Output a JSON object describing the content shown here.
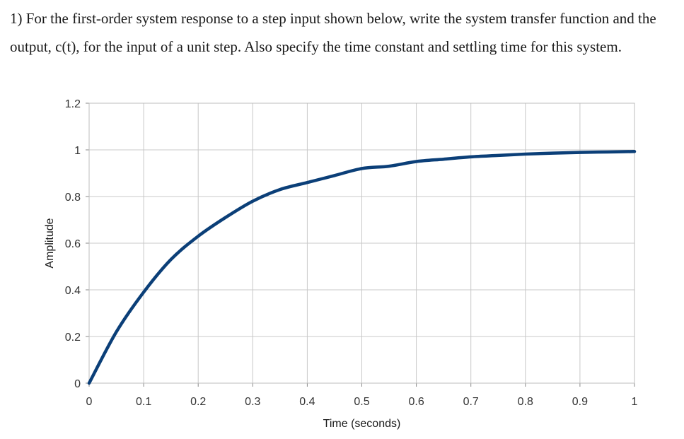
{
  "question": {
    "text": "1) For the first-order system response to a step input shown below, write the system transfer function and the output, c(t), for the input of a unit step. Also specify the time constant and settling time for this system."
  },
  "chart_data": {
    "type": "line",
    "title": "",
    "xlabel": "Time (seconds)",
    "ylabel": "Amplitude",
    "xlim": [
      0,
      1
    ],
    "ylim": [
      0,
      1.2
    ],
    "x_ticks": [
      "0",
      "0.1",
      "0.2",
      "0.3",
      "0.4",
      "0.5",
      "0.6",
      "0.7",
      "0.8",
      "0.9",
      "1"
    ],
    "y_ticks": [
      "0",
      "0.2",
      "0.4",
      "0.6",
      "0.8",
      "1",
      "1.2"
    ],
    "grid": true,
    "legend": "none",
    "series": [
      {
        "color": "#0b3f78",
        "x": [
          0,
          0.05,
          0.1,
          0.15,
          0.2,
          0.25,
          0.3,
          0.35,
          0.4,
          0.45,
          0.5,
          0.55,
          0.6,
          0.65,
          0.7,
          0.75,
          0.8,
          0.85,
          0.9,
          0.95,
          1.0
        ],
        "y": [
          0,
          0.22,
          0.39,
          0.53,
          0.63,
          0.71,
          0.78,
          0.83,
          0.86,
          0.89,
          0.92,
          0.93,
          0.95,
          0.96,
          0.97,
          0.976,
          0.982,
          0.986,
          0.989,
          0.991,
          0.993
        ]
      }
    ]
  }
}
